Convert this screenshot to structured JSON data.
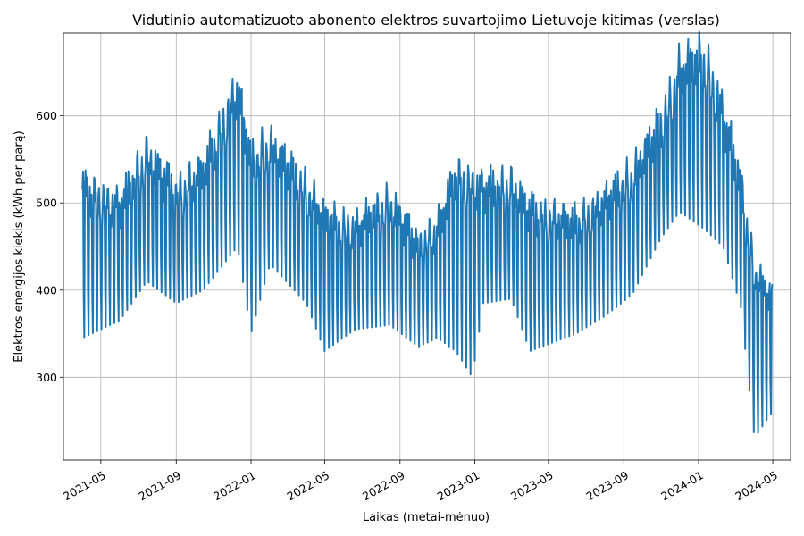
{
  "chart_data": {
    "type": "line",
    "title": "Vidutinio automatizuoto abonento elektros suvartojimo Lietuvoje kitimas (verslas)",
    "xlabel": "Laikas (metai-mėnuo)",
    "ylabel": "Elektros energijos kiekis (kWh per parą)",
    "x_start": "2021-04-01",
    "x_end": "2024-04-30",
    "xlim": [
      "2021-03-01",
      "2024-05-30"
    ],
    "ylim": [
      205,
      695
    ],
    "grid": true,
    "line_color": "#1f77b4",
    "xticks": [
      {
        "date": "2021-05-01",
        "label": "2021-05"
      },
      {
        "date": "2021-09-01",
        "label": "2021-09"
      },
      {
        "date": "2022-01-01",
        "label": "2022-01"
      },
      {
        "date": "2022-05-01",
        "label": "2022-05"
      },
      {
        "date": "2022-09-01",
        "label": "2022-09"
      },
      {
        "date": "2023-01-01",
        "label": "2023-01"
      },
      {
        "date": "2023-05-01",
        "label": "2023-05"
      },
      {
        "date": "2023-09-01",
        "label": "2023-09"
      },
      {
        "date": "2024-01-01",
        "label": "2024-01"
      },
      {
        "date": "2024-05-01",
        "label": "2024-05"
      }
    ],
    "yticks": [
      {
        "value": 300,
        "label": "300"
      },
      {
        "value": 400,
        "label": "400"
      },
      {
        "value": 500,
        "label": "500"
      },
      {
        "value": 600,
        "label": "600"
      }
    ],
    "weekday_envelope": [
      {
        "date": "2021-04-01",
        "value": 515
      },
      {
        "date": "2021-06-01",
        "value": 495
      },
      {
        "date": "2021-07-15",
        "value": 555
      },
      {
        "date": "2021-09-01",
        "value": 510
      },
      {
        "date": "2021-10-15",
        "value": 535
      },
      {
        "date": "2021-12-10",
        "value": 630
      },
      {
        "date": "2022-01-01",
        "value": 545
      },
      {
        "date": "2022-02-01",
        "value": 565
      },
      {
        "date": "2022-04-01",
        "value": 515
      },
      {
        "date": "2022-05-01",
        "value": 480
      },
      {
        "date": "2022-06-20",
        "value": 470
      },
      {
        "date": "2022-08-15",
        "value": 500
      },
      {
        "date": "2022-10-01",
        "value": 450
      },
      {
        "date": "2022-11-01",
        "value": 470
      },
      {
        "date": "2022-12-01",
        "value": 530
      },
      {
        "date": "2023-01-15",
        "value": 515
      },
      {
        "date": "2023-03-01",
        "value": 520
      },
      {
        "date": "2023-04-01",
        "value": 490
      },
      {
        "date": "2023-06-15",
        "value": 475
      },
      {
        "date": "2023-08-01",
        "value": 500
      },
      {
        "date": "2023-09-15",
        "value": 530
      },
      {
        "date": "2023-11-01",
        "value": 590
      },
      {
        "date": "2023-12-01",
        "value": 650
      },
      {
        "date": "2024-01-10",
        "value": 665
      },
      {
        "date": "2024-02-10",
        "value": 600
      },
      {
        "date": "2024-03-10",
        "value": 520
      },
      {
        "date": "2024-04-01",
        "value": 420
      },
      {
        "date": "2024-04-30",
        "value": 390
      }
    ],
    "weekend_envelope": [
      {
        "date": "2021-04-01",
        "value": 345
      },
      {
        "date": "2021-06-01",
        "value": 365
      },
      {
        "date": "2021-07-15",
        "value": 410
      },
      {
        "date": "2021-09-01",
        "value": 385
      },
      {
        "date": "2021-10-15",
        "value": 400
      },
      {
        "date": "2021-12-10",
        "value": 450
      },
      {
        "date": "2022-01-01",
        "value": 350
      },
      {
        "date": "2022-02-01",
        "value": 430
      },
      {
        "date": "2022-04-01",
        "value": 385
      },
      {
        "date": "2022-05-01",
        "value": 330
      },
      {
        "date": "2022-06-20",
        "value": 355
      },
      {
        "date": "2022-08-15",
        "value": 360
      },
      {
        "date": "2022-10-01",
        "value": 335
      },
      {
        "date": "2022-11-01",
        "value": 345
      },
      {
        "date": "2022-12-01",
        "value": 330
      },
      {
        "date": "2022-12-28",
        "value": 300
      },
      {
        "date": "2023-01-15",
        "value": 385
      },
      {
        "date": "2023-03-01",
        "value": 390
      },
      {
        "date": "2023-04-01",
        "value": 330
      },
      {
        "date": "2023-06-15",
        "value": 350
      },
      {
        "date": "2023-08-01",
        "value": 370
      },
      {
        "date": "2023-09-15",
        "value": 395
      },
      {
        "date": "2023-11-01",
        "value": 460
      },
      {
        "date": "2023-12-01",
        "value": 490
      },
      {
        "date": "2024-01-10",
        "value": 470
      },
      {
        "date": "2024-02-10",
        "value": 450
      },
      {
        "date": "2024-03-10",
        "value": 380
      },
      {
        "date": "2024-04-01",
        "value": 230
      },
      {
        "date": "2024-04-30",
        "value": 260
      }
    ]
  }
}
